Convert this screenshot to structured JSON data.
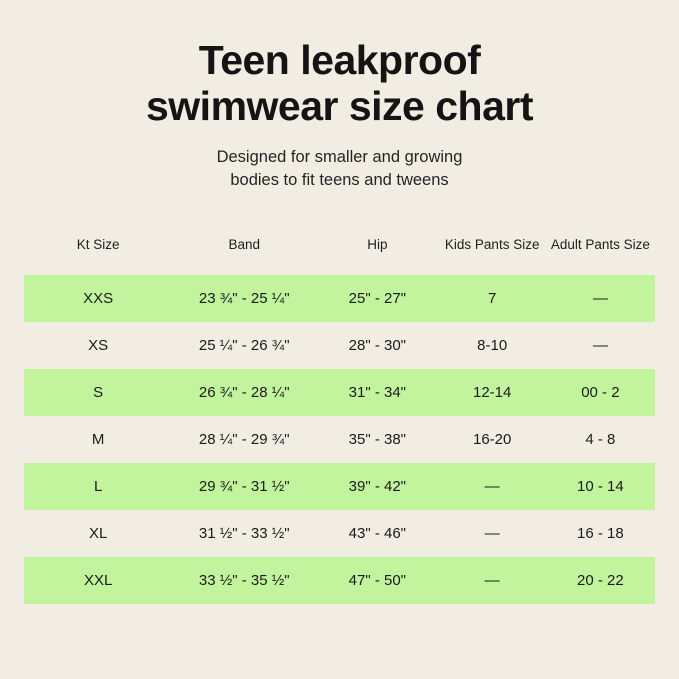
{
  "title": {
    "line1": "Teen leakproof",
    "line2": "swimwear size chart"
  },
  "subtitle": {
    "line1": "Designed for smaller and growing",
    "line2": "bodies to fit teens and tweens"
  },
  "colors": {
    "background": "#f2ede2",
    "row_highlight_green": "#c1f49d",
    "text": "#1b1b1b"
  },
  "table": {
    "headers": {
      "kt_size": "Kt Size",
      "band": "Band",
      "hip": "Hip",
      "kids_pants": "Kids Pants Size",
      "adult_pants": "Adult Pants Size"
    },
    "rows": [
      {
        "kt_size": "XXS",
        "band": "23 ¾\" - 25 ¼\"",
        "hip": "25\" - 27\"",
        "kids_pants": "7",
        "adult_pants": "—"
      },
      {
        "kt_size": "XS",
        "band": "25 ¼\" - 26 ¾\"",
        "hip": "28\" - 30\"",
        "kids_pants": "8-10",
        "adult_pants": "—"
      },
      {
        "kt_size": "S",
        "band": "26 ¾\" - 28 ¼\"",
        "hip": "31\" - 34\"",
        "kids_pants": "12-14",
        "adult_pants": "00 - 2"
      },
      {
        "kt_size": "M",
        "band": "28 ¼\" - 29 ¾\"",
        "hip": "35\" - 38\"",
        "kids_pants": "16-20",
        "adult_pants": "4 - 8"
      },
      {
        "kt_size": "L",
        "band": "29 ¾\" - 31 ½\"",
        "hip": "39\" - 42\"",
        "kids_pants": "—",
        "adult_pants": "10 - 14"
      },
      {
        "kt_size": "XL",
        "band": "31 ½\" - 33 ½\"",
        "hip": "43\" - 46\"",
        "kids_pants": "—",
        "adult_pants": "16 - 18"
      },
      {
        "kt_size": "XXL",
        "band": "33 ½\" - 35 ½\"",
        "hip": "47\" - 50\"",
        "kids_pants": "—",
        "adult_pants": "20 - 22"
      }
    ]
  },
  "chart_data": {
    "type": "table",
    "title": "Teen leakproof swimwear size chart",
    "subtitle": "Designed for smaller and growing bodies to fit teens and tweens",
    "columns": [
      "Kt Size",
      "Band",
      "Hip",
      "Kids Pants Size",
      "Adult Pants Size"
    ],
    "rows": [
      [
        "XXS",
        "23 ¾\" - 25 ¼\"",
        "25\" - 27\"",
        "7",
        "—"
      ],
      [
        "XS",
        "25 ¼\" - 26 ¾\"",
        "28\" - 30\"",
        "8-10",
        "—"
      ],
      [
        "S",
        "26 ¾\" - 28 ¼\"",
        "31\" - 34\"",
        "12-14",
        "00 - 2"
      ],
      [
        "M",
        "28 ¼\" - 29 ¾\"",
        "35\" - 38\"",
        "16-20",
        "4 - 8"
      ],
      [
        "L",
        "29 ¾\" - 31 ½\"",
        "39\" - 42\"",
        "—",
        "10 - 14"
      ],
      [
        "XL",
        "31 ½\" - 33 ½\"",
        "43\" - 46\"",
        "—",
        "16 - 18"
      ],
      [
        "XXL",
        "33 ½\" - 35 ½\"",
        "47\" - 50\"",
        "—",
        "20 - 22"
      ]
    ],
    "layout": {
      "highlighted_rows": [
        0,
        2,
        4,
        6
      ],
      "highlight_color": "#c1f49d",
      "grid": false,
      "header_background": "none"
    }
  }
}
